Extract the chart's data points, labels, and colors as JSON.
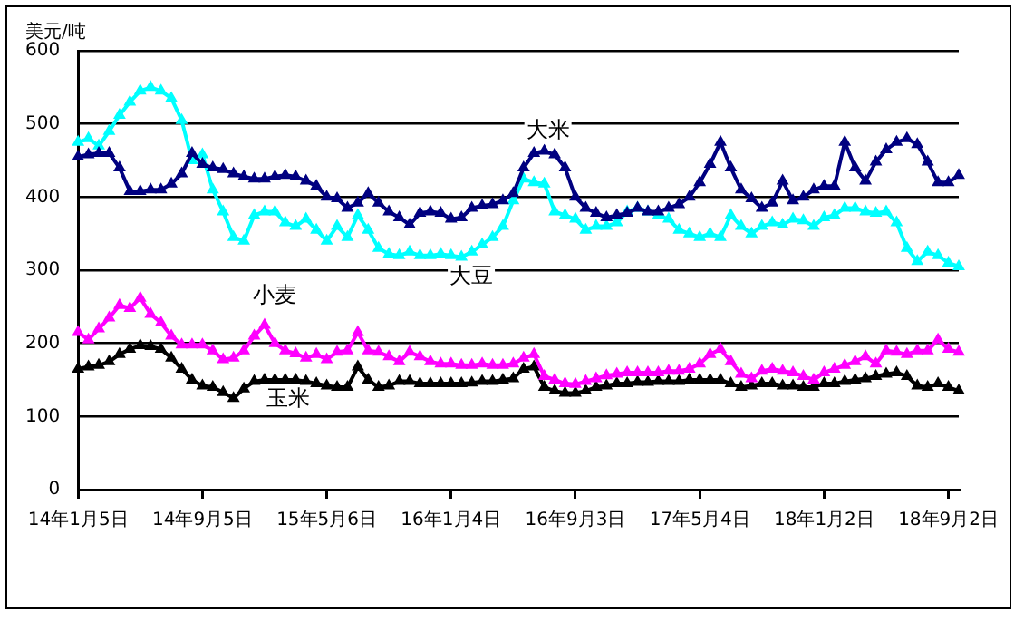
{
  "chart_data": {
    "type": "line",
    "ylabel": "美元/吨",
    "categories": [
      "14年1月5日",
      null,
      null,
      null,
      null,
      null,
      null,
      null,
      null,
      null,
      null,
      null,
      "14年9月5日",
      null,
      null,
      null,
      null,
      null,
      null,
      null,
      null,
      null,
      null,
      null,
      "15年5月6日",
      null,
      null,
      null,
      null,
      null,
      null,
      null,
      null,
      null,
      null,
      null,
      "16年1月4日",
      null,
      null,
      null,
      null,
      null,
      null,
      null,
      null,
      null,
      null,
      null,
      "16年9月3日",
      null,
      null,
      null,
      null,
      null,
      null,
      null,
      null,
      null,
      null,
      null,
      "17年5月4日",
      null,
      null,
      null,
      null,
      null,
      null,
      null,
      null,
      null,
      null,
      null,
      "18年1月2日",
      null,
      null,
      null,
      null,
      null,
      null,
      null,
      null,
      null,
      null,
      null,
      "18年9月2日",
      null
    ],
    "series": [
      {
        "name": "大米",
        "color": "#000080",
        "values": [
          455,
          458,
          460,
          460,
          440,
          408,
          408,
          410,
          410,
          418,
          432,
          460,
          445,
          440,
          438,
          432,
          428,
          425,
          425,
          428,
          430,
          428,
          422,
          415,
          400,
          398,
          385,
          392,
          405,
          392,
          380,
          372,
          362,
          378,
          380,
          378,
          370,
          372,
          385,
          388,
          390,
          395,
          405,
          440,
          460,
          463,
          458,
          440,
          400,
          385,
          378,
          372,
          375,
          378,
          385,
          380,
          380,
          385,
          390,
          400,
          420,
          445,
          475,
          440,
          410,
          398,
          385,
          392,
          422,
          395,
          400,
          410,
          415,
          415,
          475,
          440,
          422,
          448,
          465,
          475,
          480,
          472,
          448,
          420,
          420,
          430
        ]
      },
      {
        "name": "大豆",
        "color": "#00ffff",
        "values": [
          475,
          480,
          470,
          490,
          512,
          530,
          545,
          550,
          545,
          535,
          505,
          450,
          458,
          410,
          380,
          345,
          340,
          375,
          380,
          380,
          365,
          360,
          370,
          355,
          340,
          360,
          345,
          375,
          355,
          330,
          322,
          320,
          325,
          320,
          320,
          322,
          320,
          318,
          325,
          335,
          345,
          360,
          395,
          425,
          420,
          418,
          380,
          375,
          370,
          355,
          360,
          360,
          365,
          380,
          385,
          380,
          375,
          370,
          355,
          350,
          345,
          350,
          345,
          375,
          360,
          350,
          360,
          365,
          362,
          370,
          368,
          360,
          372,
          375,
          385,
          385,
          380,
          378,
          380,
          365,
          330,
          312,
          325,
          320,
          310,
          305
        ]
      },
      {
        "name": "小麦",
        "color": "#ff00ff",
        "values": [
          215,
          205,
          220,
          235,
          252,
          248,
          262,
          240,
          228,
          210,
          198,
          198,
          198,
          190,
          178,
          180,
          190,
          210,
          225,
          200,
          190,
          186,
          180,
          185,
          178,
          188,
          190,
          215,
          190,
          188,
          182,
          175,
          188,
          182,
          175,
          172,
          172,
          170,
          170,
          172,
          170,
          170,
          172,
          180,
          185,
          155,
          150,
          145,
          144,
          148,
          152,
          156,
          158,
          160,
          160,
          160,
          160,
          162,
          162,
          165,
          172,
          185,
          192,
          175,
          158,
          152,
          162,
          165,
          162,
          160,
          155,
          150,
          160,
          165,
          170,
          175,
          182,
          172,
          190,
          188,
          185,
          190,
          190,
          205,
          192,
          188
        ]
      },
      {
        "name": "玉米",
        "color": "#000000",
        "values": [
          165,
          168,
          170,
          175,
          185,
          192,
          197,
          196,
          192,
          180,
          165,
          150,
          142,
          140,
          133,
          125,
          138,
          148,
          150,
          150,
          150,
          150,
          148,
          145,
          142,
          140,
          140,
          168,
          150,
          140,
          142,
          148,
          148,
          145,
          145,
          145,
          145,
          145,
          146,
          148,
          148,
          150,
          152,
          165,
          168,
          140,
          135,
          132,
          132,
          135,
          140,
          142,
          145,
          145,
          147,
          147,
          148,
          148,
          148,
          150,
          150,
          150,
          150,
          145,
          140,
          142,
          145,
          145,
          142,
          142,
          140,
          140,
          145,
          145,
          148,
          150,
          152,
          155,
          158,
          160,
          155,
          142,
          140,
          145,
          140,
          135
        ]
      }
    ],
    "ylim": [
      0,
      600
    ],
    "yticks": [
      0,
      100,
      200,
      300,
      400,
      500,
      600
    ],
    "grid": "y",
    "legend": false,
    "marker": "triangle"
  }
}
